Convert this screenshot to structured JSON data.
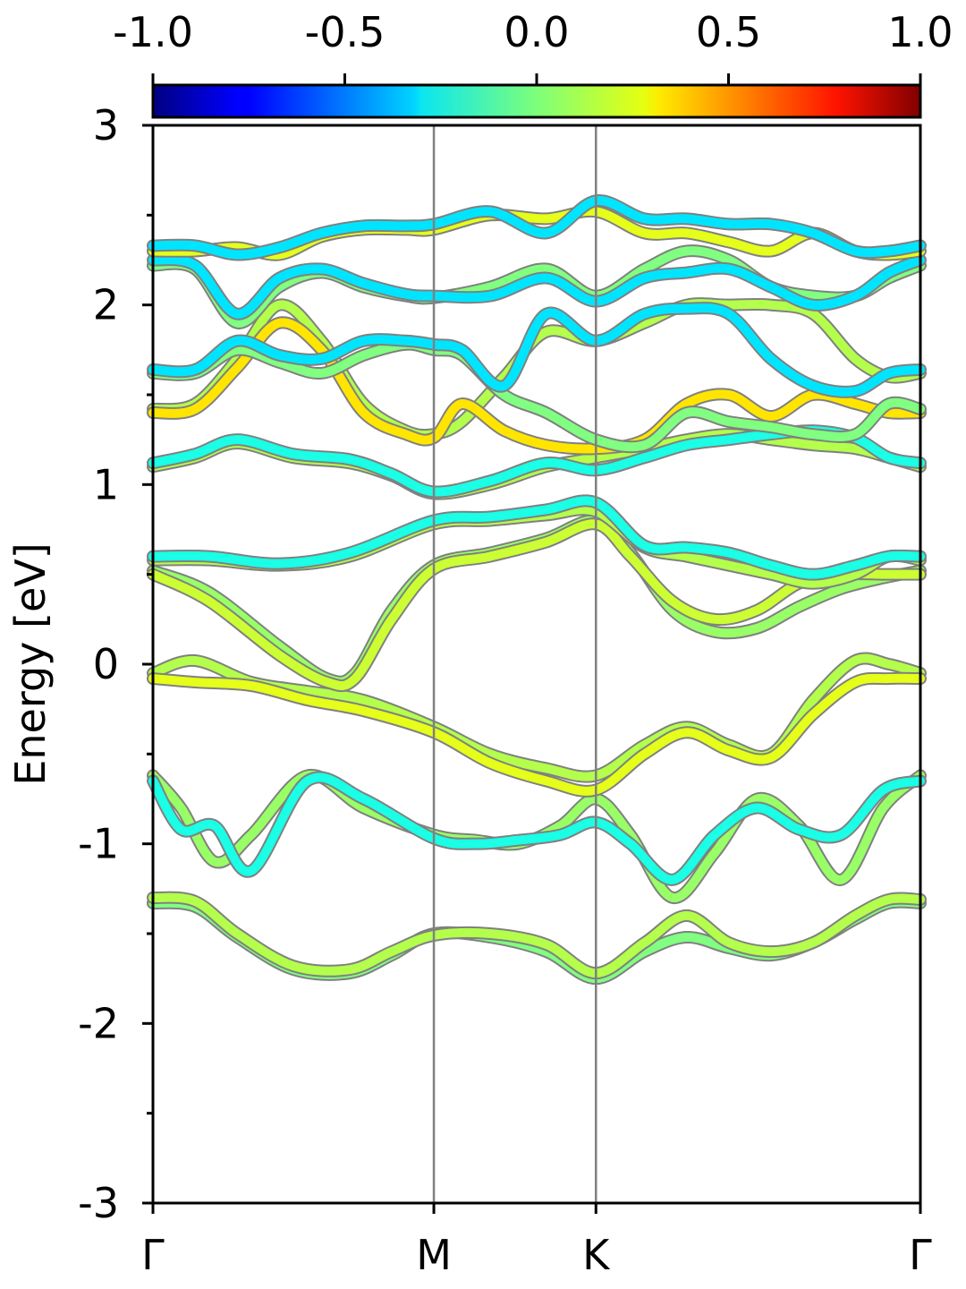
{
  "chart_data": {
    "type": "line",
    "subtype": "band-structure",
    "title": "",
    "ylabel": "Energy [eV]",
    "xlabel": "",
    "ylim": [
      -3,
      3
    ],
    "yticks": [
      "3",
      "2",
      "1",
      "0",
      "-1",
      "-2",
      "-3"
    ],
    "xticks": [
      {
        "label": "Γ",
        "k": 0.0
      },
      {
        "label": "M",
        "k": 1.0
      },
      {
        "label": "K",
        "k": 1.577
      },
      {
        "label": "Γ",
        "k": 2.732
      }
    ],
    "colorbar": {
      "colormap": "jet",
      "range": [
        -1.0,
        1.0
      ],
      "ticks": [
        "-1.0",
        "-0.5",
        "0.0",
        "0.5",
        "1.0"
      ]
    },
    "grid": false,
    "series": [
      {
        "id": "b1",
        "color_value": 0.0,
        "x": [
          0,
          0.15,
          0.3,
          0.5,
          0.7,
          0.85,
          1.0,
          1.2,
          1.4,
          1.577,
          1.75,
          1.9,
          2.05,
          2.2,
          2.35,
          2.5,
          2.62,
          2.732
        ],
        "y": [
          -1.33,
          -1.35,
          -1.52,
          -1.7,
          -1.72,
          -1.62,
          -1.5,
          -1.52,
          -1.6,
          -1.75,
          -1.6,
          -1.52,
          -1.58,
          -1.62,
          -1.55,
          -1.42,
          -1.33,
          -1.33
        ]
      },
      {
        "id": "b2",
        "color_value": 0.1,
        "x": [
          0,
          0.15,
          0.3,
          0.5,
          0.7,
          0.85,
          1.0,
          1.2,
          1.4,
          1.577,
          1.75,
          1.9,
          2.05,
          2.2,
          2.35,
          2.5,
          2.62,
          2.732
        ],
        "y": [
          -1.3,
          -1.32,
          -1.5,
          -1.68,
          -1.7,
          -1.6,
          -1.51,
          -1.5,
          -1.56,
          -1.72,
          -1.55,
          -1.4,
          -1.55,
          -1.6,
          -1.55,
          -1.4,
          -1.31,
          -1.31
        ]
      },
      {
        "id": "b3",
        "color_value": 0.05,
        "x": [
          0,
          0.1,
          0.22,
          0.35,
          0.55,
          0.75,
          1.0,
          1.15,
          1.3,
          1.45,
          1.577,
          1.7,
          1.85,
          2.0,
          2.15,
          2.3,
          2.45,
          2.6,
          2.732
        ],
        "y": [
          -0.62,
          -0.8,
          -1.1,
          -0.95,
          -0.62,
          -0.8,
          -0.95,
          -0.98,
          -1.0,
          -0.9,
          -0.75,
          -0.95,
          -1.3,
          -1.05,
          -0.75,
          -0.9,
          -1.2,
          -0.8,
          -0.62
        ]
      },
      {
        "id": "b4",
        "color_value": -0.2,
        "x": [
          0,
          0.1,
          0.22,
          0.35,
          0.55,
          0.75,
          1.0,
          1.15,
          1.3,
          1.45,
          1.577,
          1.7,
          1.85,
          2.0,
          2.15,
          2.3,
          2.45,
          2.6,
          2.732
        ],
        "y": [
          -0.65,
          -0.92,
          -0.9,
          -1.15,
          -0.65,
          -0.75,
          -0.97,
          -1.0,
          -0.98,
          -0.95,
          -0.88,
          -1.0,
          -1.2,
          -0.95,
          -0.8,
          -0.92,
          -0.95,
          -0.7,
          -0.65
        ]
      },
      {
        "id": "b5",
        "color_value": 0.1,
        "x": [
          0,
          0.15,
          0.35,
          0.55,
          0.75,
          1.0,
          1.2,
          1.4,
          1.577,
          1.75,
          1.9,
          2.05,
          2.2,
          2.35,
          2.5,
          2.62,
          2.732
        ],
        "y": [
          -0.05,
          0.02,
          -0.1,
          -0.15,
          -0.2,
          -0.35,
          -0.5,
          -0.58,
          -0.62,
          -0.45,
          -0.35,
          -0.45,
          -0.5,
          -0.2,
          0.02,
          0.0,
          -0.05
        ]
      },
      {
        "id": "b6",
        "color_value": 0.2,
        "x": [
          0,
          0.15,
          0.35,
          0.55,
          0.75,
          1.0,
          1.2,
          1.4,
          1.577,
          1.75,
          1.9,
          2.05,
          2.2,
          2.35,
          2.5,
          2.62,
          2.732
        ],
        "y": [
          -0.08,
          -0.1,
          -0.12,
          -0.2,
          -0.26,
          -0.38,
          -0.55,
          -0.65,
          -0.7,
          -0.5,
          -0.38,
          -0.48,
          -0.52,
          -0.28,
          -0.1,
          -0.08,
          -0.08
        ]
      },
      {
        "id": "b7",
        "color_value": 0.05,
        "x": [
          0,
          0.2,
          0.45,
          0.62,
          0.72,
          0.85,
          1.0,
          1.2,
          1.4,
          1.577,
          1.7,
          1.85,
          2.0,
          2.15,
          2.3,
          2.45,
          2.6,
          2.732
        ],
        "y": [
          0.52,
          0.4,
          0.1,
          -0.08,
          -0.05,
          0.3,
          0.55,
          0.62,
          0.7,
          0.8,
          0.62,
          0.3,
          0.18,
          0.2,
          0.32,
          0.42,
          0.48,
          0.52
        ]
      },
      {
        "id": "b8",
        "color_value": 0.15,
        "x": [
          0,
          0.2,
          0.45,
          0.62,
          0.72,
          0.85,
          1.0,
          1.2,
          1.4,
          1.577,
          1.7,
          1.85,
          2.0,
          2.15,
          2.3,
          2.45,
          2.6,
          2.732
        ],
        "y": [
          0.5,
          0.35,
          0.05,
          -0.1,
          -0.08,
          0.25,
          0.53,
          0.6,
          0.68,
          0.78,
          0.6,
          0.35,
          0.25,
          0.3,
          0.45,
          0.5,
          0.5,
          0.5
        ]
      },
      {
        "id": "b9",
        "color_value": 0.1,
        "x": [
          0,
          0.2,
          0.45,
          0.7,
          1.0,
          1.2,
          1.4,
          1.577,
          1.75,
          1.9,
          2.05,
          2.2,
          2.35,
          2.5,
          2.62,
          2.732
        ],
        "y": [
          0.58,
          0.58,
          0.55,
          0.6,
          0.78,
          0.8,
          0.83,
          0.85,
          0.65,
          0.6,
          0.55,
          0.5,
          0.45,
          0.5,
          0.6,
          0.58
        ]
      },
      {
        "id": "b10",
        "color_value": -0.2,
        "x": [
          0,
          0.2,
          0.45,
          0.7,
          1.0,
          1.2,
          1.4,
          1.577,
          1.75,
          1.9,
          2.05,
          2.2,
          2.35,
          2.5,
          2.62,
          2.732
        ],
        "y": [
          0.6,
          0.6,
          0.56,
          0.62,
          0.8,
          0.82,
          0.86,
          0.9,
          0.66,
          0.65,
          0.62,
          0.55,
          0.5,
          0.55,
          0.6,
          0.6
        ]
      },
      {
        "id": "b11",
        "color_value": 0.1,
        "x": [
          0,
          0.15,
          0.3,
          0.5,
          0.7,
          0.85,
          1.0,
          1.2,
          1.4,
          1.577,
          1.75,
          1.9,
          2.05,
          2.2,
          2.35,
          2.5,
          2.62,
          2.732
        ],
        "y": [
          1.1,
          1.15,
          1.23,
          1.15,
          1.12,
          1.05,
          0.95,
          1.0,
          1.1,
          1.15,
          1.2,
          1.25,
          1.28,
          1.25,
          1.22,
          1.2,
          1.15,
          1.1
        ]
      },
      {
        "id": "b12",
        "color_value": -0.2,
        "x": [
          0,
          0.15,
          0.3,
          0.5,
          0.7,
          0.85,
          1.0,
          1.2,
          1.4,
          1.577,
          1.75,
          1.9,
          2.05,
          2.2,
          2.35,
          2.5,
          2.62,
          2.732
        ],
        "y": [
          1.12,
          1.17,
          1.25,
          1.17,
          1.14,
          1.06,
          0.96,
          1.02,
          1.12,
          1.08,
          1.15,
          1.22,
          1.25,
          1.28,
          1.3,
          1.26,
          1.15,
          1.12
        ]
      },
      {
        "id": "b13",
        "color_value": 0.1,
        "x": [
          0,
          0.15,
          0.3,
          0.45,
          0.6,
          0.75,
          0.9,
          1.0,
          1.1,
          1.25,
          1.4,
          1.577,
          1.75,
          1.9,
          2.05,
          2.2,
          2.35,
          2.5,
          2.62,
          2.732
        ],
        "y": [
          1.42,
          1.45,
          1.7,
          2.0,
          1.8,
          1.45,
          1.3,
          1.28,
          1.35,
          1.6,
          1.85,
          1.8,
          1.9,
          2.0,
          2.0,
          2.0,
          1.95,
          1.7,
          1.6,
          1.62
        ]
      },
      {
        "id": "b14",
        "color_value": 0.3,
        "x": [
          0,
          0.15,
          0.3,
          0.45,
          0.6,
          0.75,
          0.9,
          1.0,
          1.1,
          1.25,
          1.4,
          1.577,
          1.75,
          1.9,
          2.05,
          2.2,
          2.35,
          2.5,
          2.62,
          2.732
        ],
        "y": [
          1.4,
          1.42,
          1.65,
          1.9,
          1.75,
          1.4,
          1.28,
          1.26,
          1.45,
          1.3,
          1.22,
          1.2,
          1.25,
          1.45,
          1.5,
          1.38,
          1.5,
          1.45,
          1.4,
          1.4
        ]
      },
      {
        "id": "b15",
        "color_value": 0.0,
        "x": [
          0,
          0.15,
          0.3,
          0.45,
          0.6,
          0.75,
          0.9,
          1.0,
          1.1,
          1.25,
          1.4,
          1.577,
          1.75,
          1.9,
          2.05,
          2.2,
          2.35,
          2.5,
          2.62,
          2.732
        ],
        "y": [
          1.62,
          1.62,
          1.75,
          1.68,
          1.62,
          1.72,
          1.78,
          1.75,
          1.72,
          1.5,
          1.4,
          1.25,
          1.22,
          1.4,
          1.35,
          1.32,
          1.28,
          1.28,
          1.45,
          1.42
        ]
      },
      {
        "id": "b16",
        "color_value": -0.3,
        "x": [
          0,
          0.15,
          0.3,
          0.45,
          0.6,
          0.75,
          0.9,
          1.0,
          1.1,
          1.25,
          1.4,
          1.577,
          1.75,
          1.9,
          2.05,
          2.2,
          2.35,
          2.5,
          2.62,
          2.732
        ],
        "y": [
          1.64,
          1.64,
          1.8,
          1.72,
          1.7,
          1.8,
          1.8,
          1.78,
          1.75,
          1.55,
          1.95,
          1.8,
          1.95,
          1.98,
          1.95,
          1.7,
          1.55,
          1.52,
          1.62,
          1.64
        ]
      },
      {
        "id": "b17",
        "color_value": 0.0,
        "x": [
          0,
          0.15,
          0.3,
          0.45,
          0.6,
          0.75,
          0.9,
          1.0,
          1.2,
          1.4,
          1.577,
          1.75,
          1.9,
          2.05,
          2.2,
          2.35,
          2.5,
          2.62,
          2.732
        ],
        "y": [
          2.22,
          2.2,
          1.9,
          2.1,
          2.18,
          2.1,
          2.05,
          2.04,
          2.1,
          2.2,
          2.05,
          2.2,
          2.3,
          2.25,
          2.1,
          2.05,
          2.05,
          2.15,
          2.22
        ]
      },
      {
        "id": "b18",
        "color_value": -0.3,
        "x": [
          0,
          0.15,
          0.3,
          0.45,
          0.6,
          0.75,
          0.9,
          1.0,
          1.2,
          1.4,
          1.577,
          1.75,
          1.9,
          2.05,
          2.2,
          2.35,
          2.5,
          2.62,
          2.732
        ],
        "y": [
          2.25,
          2.22,
          1.95,
          2.15,
          2.2,
          2.12,
          2.06,
          2.05,
          2.05,
          2.15,
          2.02,
          2.15,
          2.18,
          2.2,
          2.1,
          2.0,
          2.05,
          2.18,
          2.25
        ]
      },
      {
        "id": "b19",
        "color_value": 0.2,
        "x": [
          0,
          0.15,
          0.3,
          0.45,
          0.6,
          0.75,
          0.9,
          1.0,
          1.2,
          1.4,
          1.577,
          1.75,
          1.9,
          2.05,
          2.2,
          2.35,
          2.5,
          2.62,
          2.732
        ],
        "y": [
          2.3,
          2.3,
          2.32,
          2.28,
          2.38,
          2.42,
          2.42,
          2.42,
          2.5,
          2.48,
          2.52,
          2.4,
          2.4,
          2.35,
          2.3,
          2.4,
          2.3,
          2.28,
          2.3
        ]
      },
      {
        "id": "b20",
        "color_value": -0.3,
        "x": [
          0,
          0.15,
          0.3,
          0.45,
          0.6,
          0.75,
          0.9,
          1.0,
          1.2,
          1.4,
          1.577,
          1.75,
          1.9,
          2.05,
          2.2,
          2.35,
          2.5,
          2.62,
          2.732
        ],
        "y": [
          2.33,
          2.33,
          2.28,
          2.32,
          2.4,
          2.44,
          2.44,
          2.45,
          2.52,
          2.4,
          2.58,
          2.48,
          2.48,
          2.45,
          2.45,
          2.4,
          2.3,
          2.3,
          2.33
        ]
      }
    ]
  }
}
